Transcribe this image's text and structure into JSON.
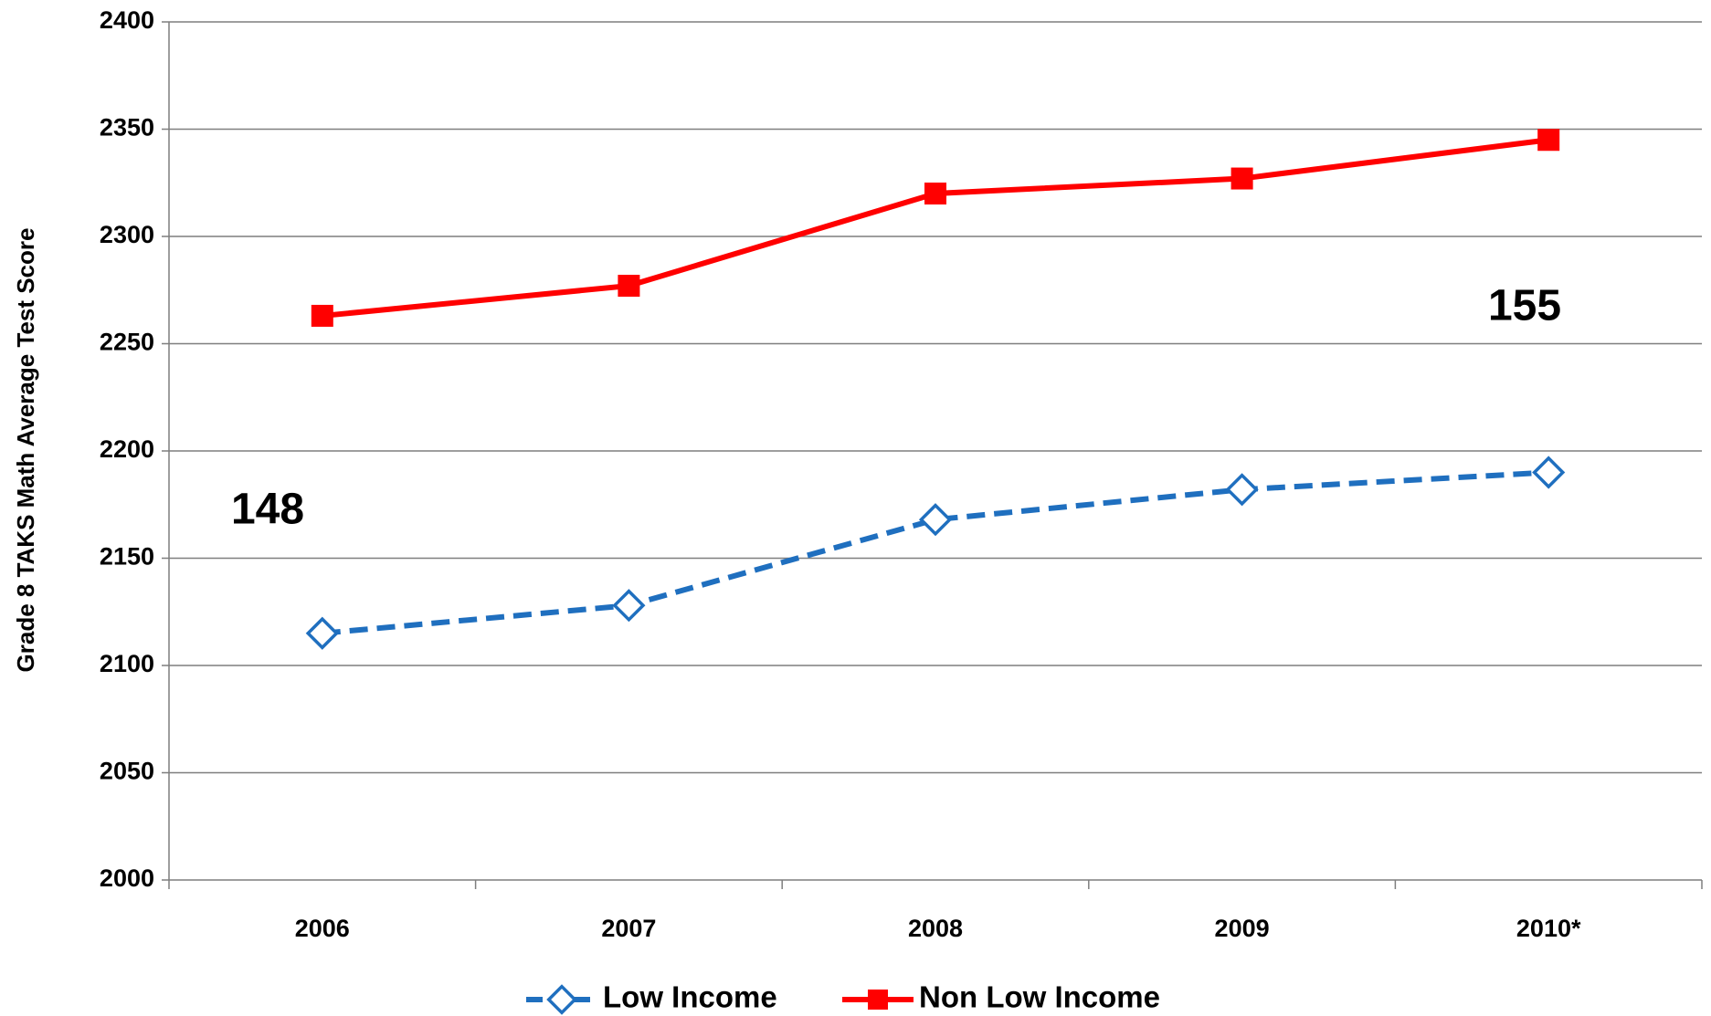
{
  "chart_data": {
    "type": "line",
    "y_label": "Grade 8 TAKS Math Average Test Score",
    "categories": [
      "2006",
      "2007",
      "2008",
      "2009",
      "2010*"
    ],
    "series": [
      {
        "name": "Low Income",
        "color": "#1f6fbf",
        "marker": "diamond",
        "dashed": true,
        "values": [
          2115,
          2128,
          2168,
          2182,
          2190
        ]
      },
      {
        "name": "Non Low Income",
        "color": "#ff0000",
        "marker": "square",
        "dashed": false,
        "values": [
          2263,
          2277,
          2320,
          2327,
          2345
        ]
      }
    ],
    "annotations": [
      "148",
      "155"
    ],
    "ylim": [
      2000,
      2400
    ],
    "yticks": [
      2000,
      2050,
      2100,
      2150,
      2200,
      2250,
      2300,
      2350,
      2400
    ],
    "grid": true,
    "legend": "bottom"
  }
}
